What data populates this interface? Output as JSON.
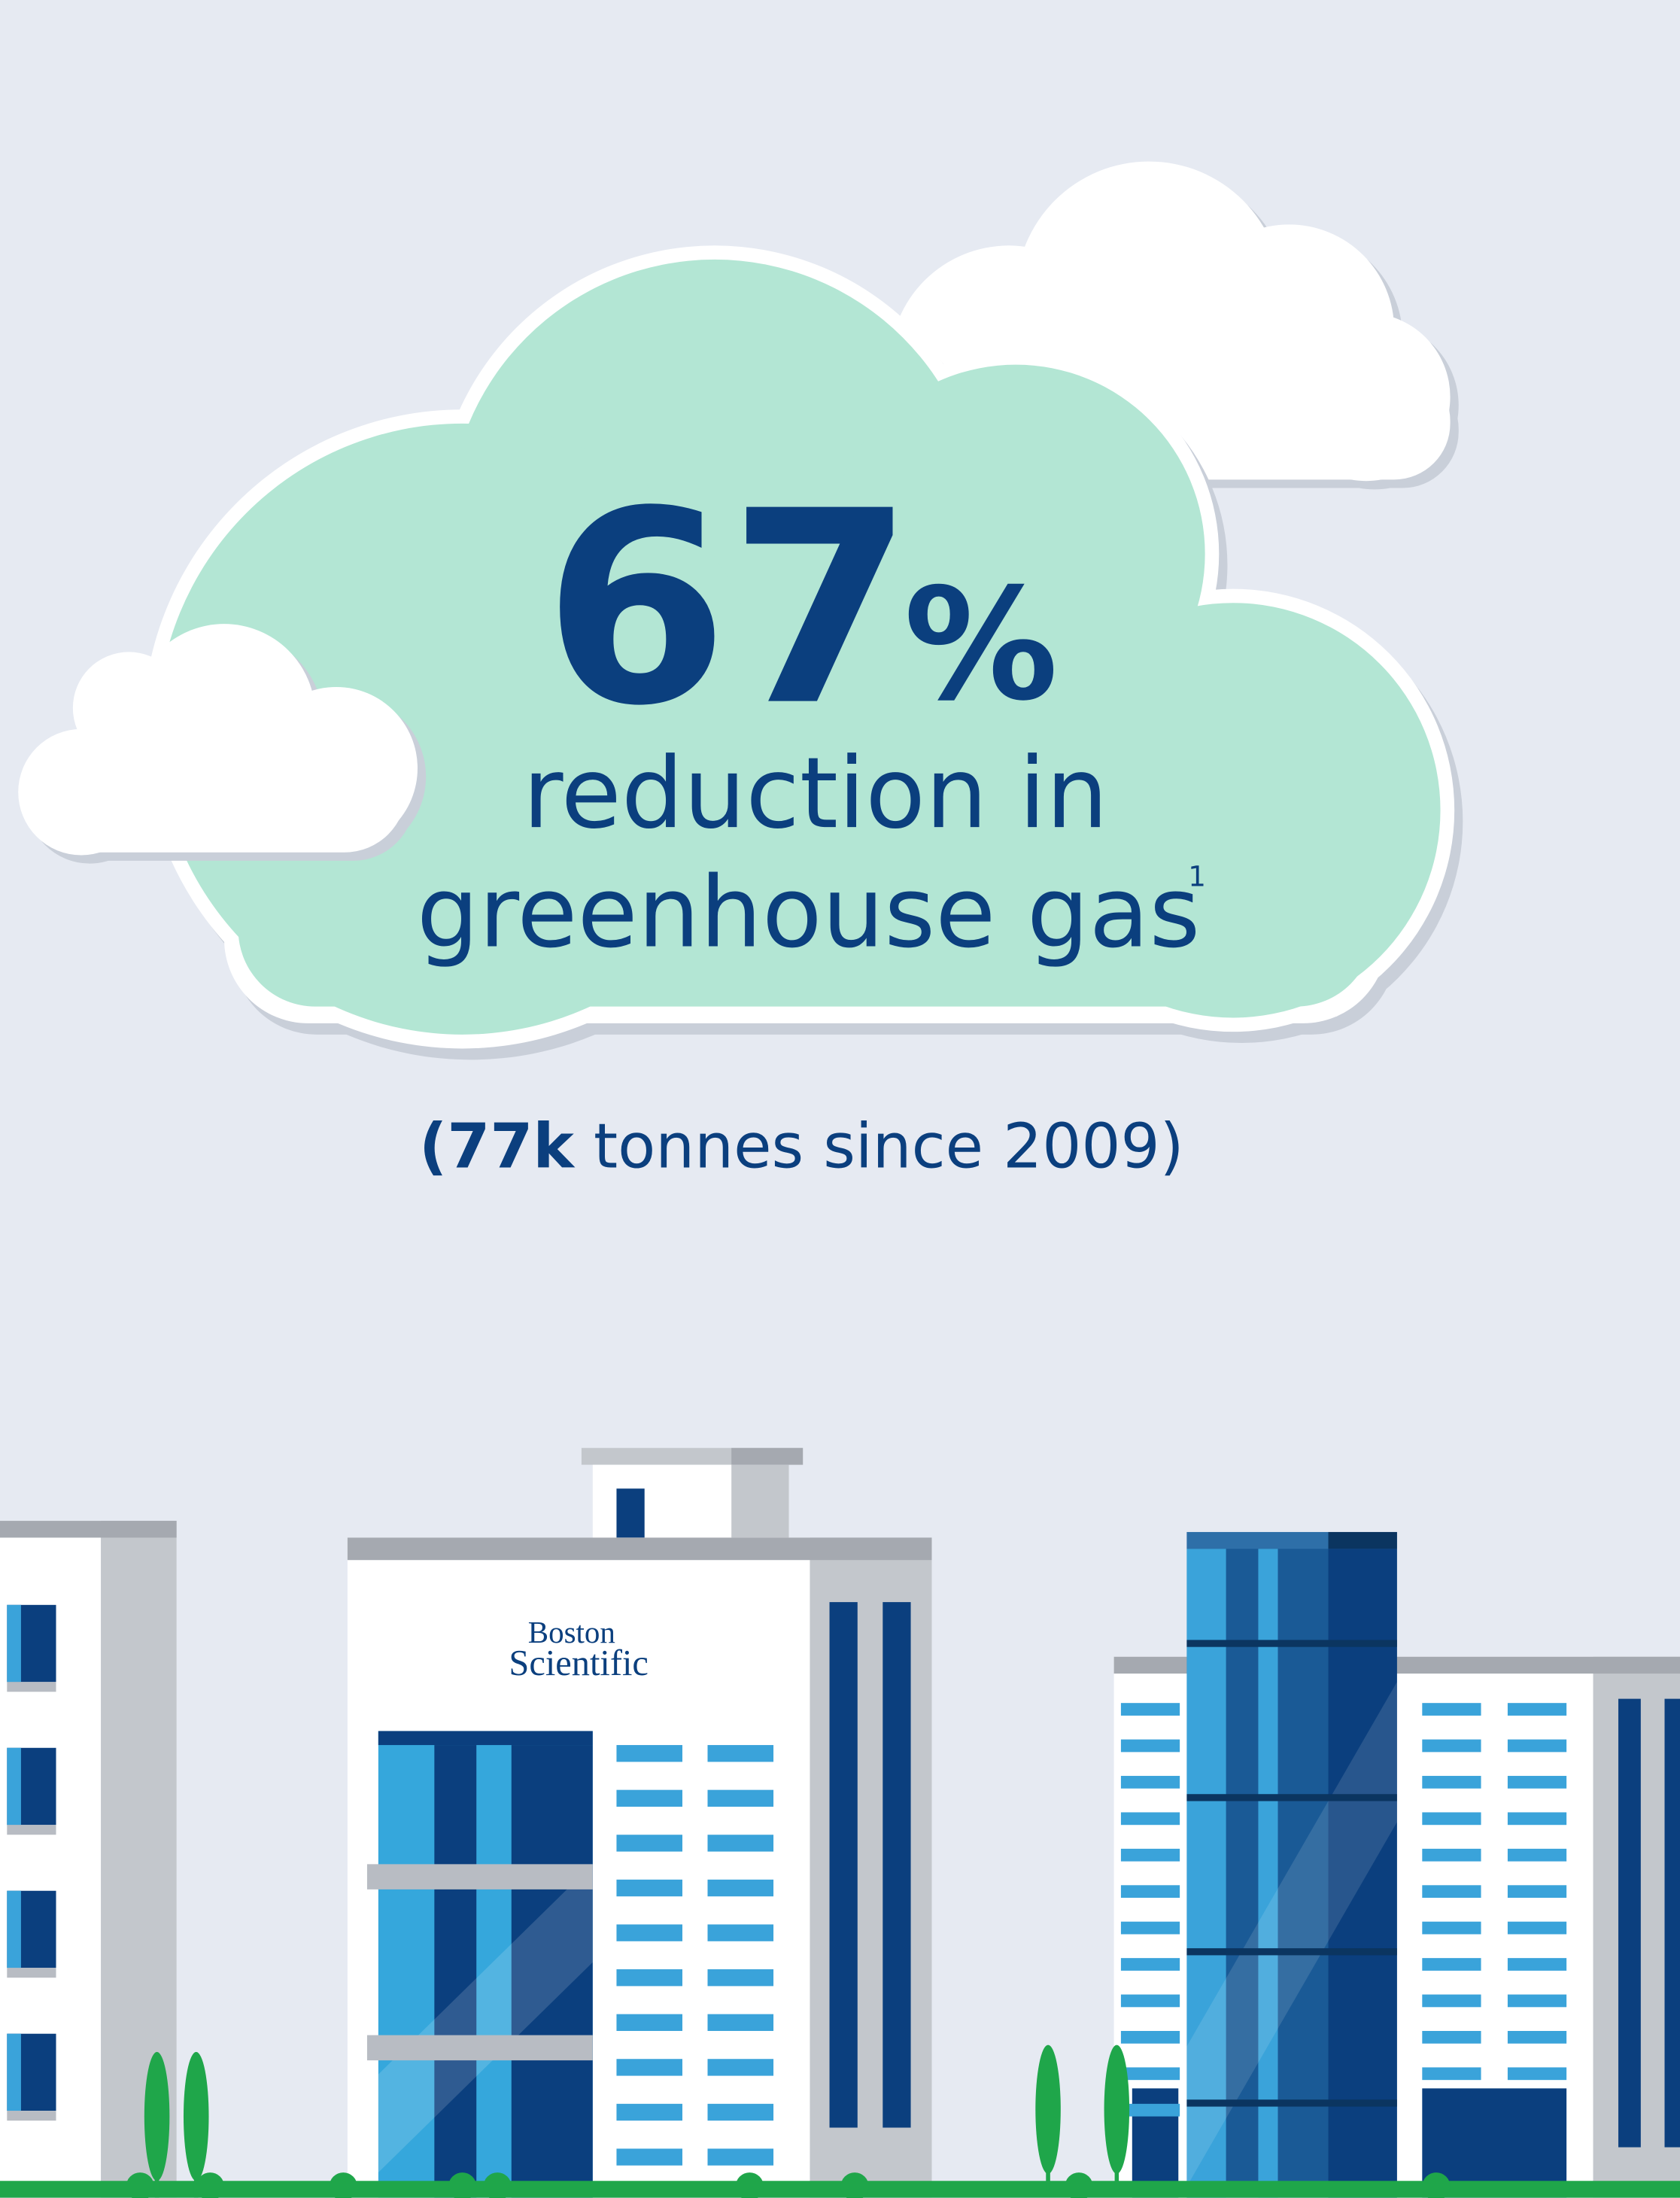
{
  "headline": {
    "value": "67",
    "unit": "%"
  },
  "caption": {
    "line1": "reduction in",
    "line2": "greenhouse gas",
    "footnote": "1"
  },
  "detail": {
    "bold": "(77k",
    "rest": " tonnes since 2009)"
  },
  "logo": {
    "line1": "Boston",
    "line2": "Scientific"
  }
}
